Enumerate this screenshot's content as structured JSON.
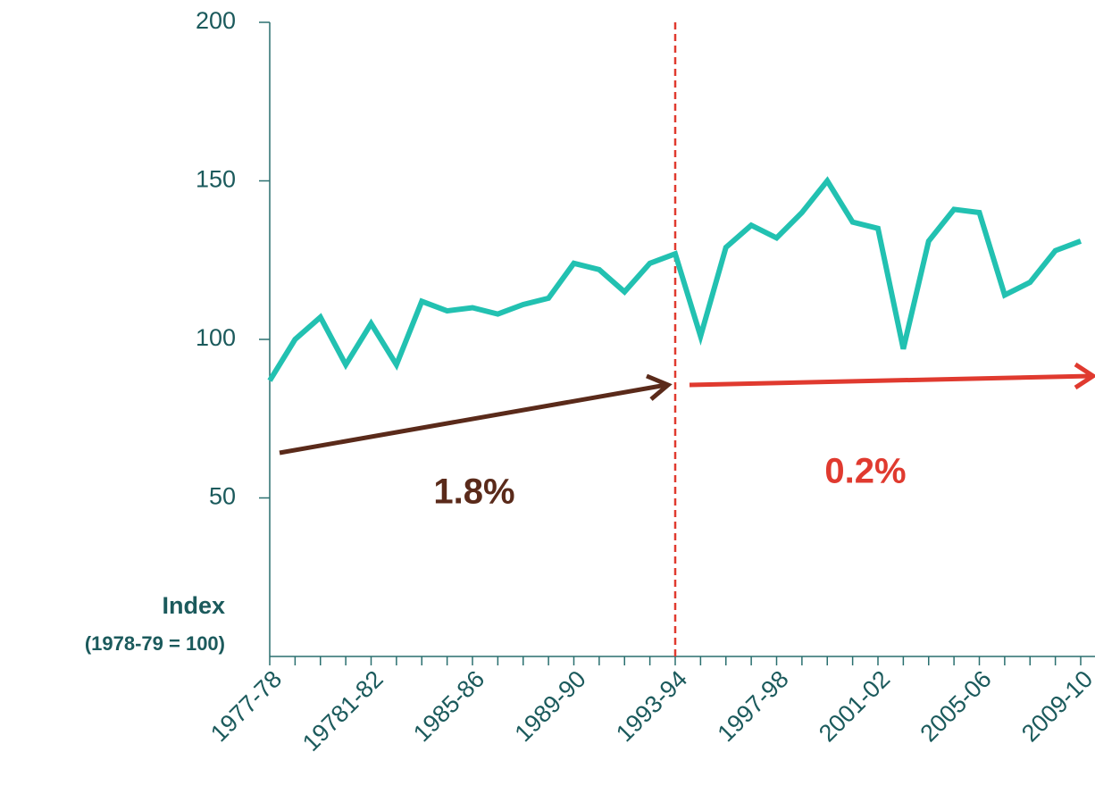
{
  "chart_data": {
    "type": "line",
    "axis_label": "Index",
    "axis_sublabel": "(1978-79 = 100)",
    "annotations": [
      "1.8%",
      "0.2%"
    ],
    "categories": [
      "1977-78",
      null,
      null,
      null,
      "19781-82",
      null,
      null,
      null,
      "1985-86",
      null,
      null,
      null,
      "1989-90",
      null,
      null,
      null,
      "1993-94",
      null,
      null,
      null,
      "1997-98",
      null,
      null,
      null,
      "2001-02",
      null,
      null,
      null,
      "2005-06",
      null,
      null,
      null,
      "2009-10"
    ],
    "series": [
      {
        "color": "#22c1b1",
        "values": [
          87,
          100,
          107,
          92,
          105,
          92,
          112,
          109,
          110,
          108,
          111,
          113,
          124,
          122,
          115,
          124,
          127,
          101,
          129,
          136,
          132,
          140,
          150,
          137,
          135,
          97,
          131,
          141,
          140,
          114,
          118,
          128,
          131
        ]
      }
    ],
    "ylim": [
      0,
      200
    ],
    "yticks": [
      50,
      100,
      150,
      200
    ],
    "grid": false
  }
}
